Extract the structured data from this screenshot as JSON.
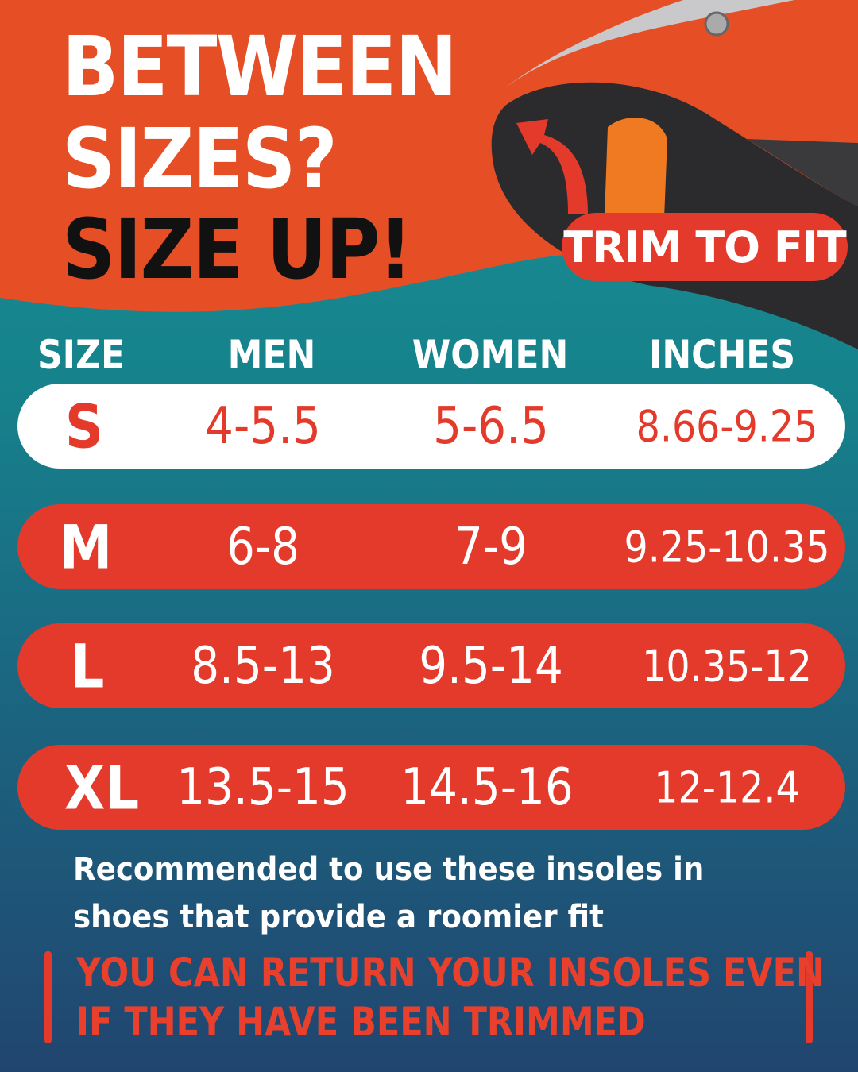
{
  "headline": {
    "line1": "BETWEEN",
    "line2": "SIZES?",
    "line3": "SIZE UP!"
  },
  "badge": "TRIM TO FIT",
  "table": {
    "headers": [
      "SIZE",
      "MEN",
      "WOMEN",
      "INCHES"
    ],
    "rows": [
      {
        "size": "S",
        "men": "4-5.5",
        "women": "5-6.5",
        "inches": "8.66-9.25",
        "highlighted": true
      },
      {
        "size": "M",
        "men": "6-8",
        "women": "7-9",
        "inches": "9.25-10.35",
        "highlighted": false
      },
      {
        "size": "L",
        "men": "8.5-13",
        "women": "9.5-14",
        "inches": "10.35-12",
        "highlighted": false
      },
      {
        "size": "XL",
        "men": "13.5-15",
        "women": "14.5-16",
        "inches": "12-12.4",
        "highlighted": false
      }
    ]
  },
  "note": "Recommended to use these insoles in shoes that provide a roomier fit",
  "returns": {
    "line1": "YOU CAN RETURN YOUR INSOLES EVEN",
    "line2": "IF THEY HAVE BEEN TRIMMED"
  },
  "colors": {
    "orange": "#e64f26",
    "red": "#e33a2b",
    "teal": "#1d8f93",
    "navy": "#21456f"
  }
}
